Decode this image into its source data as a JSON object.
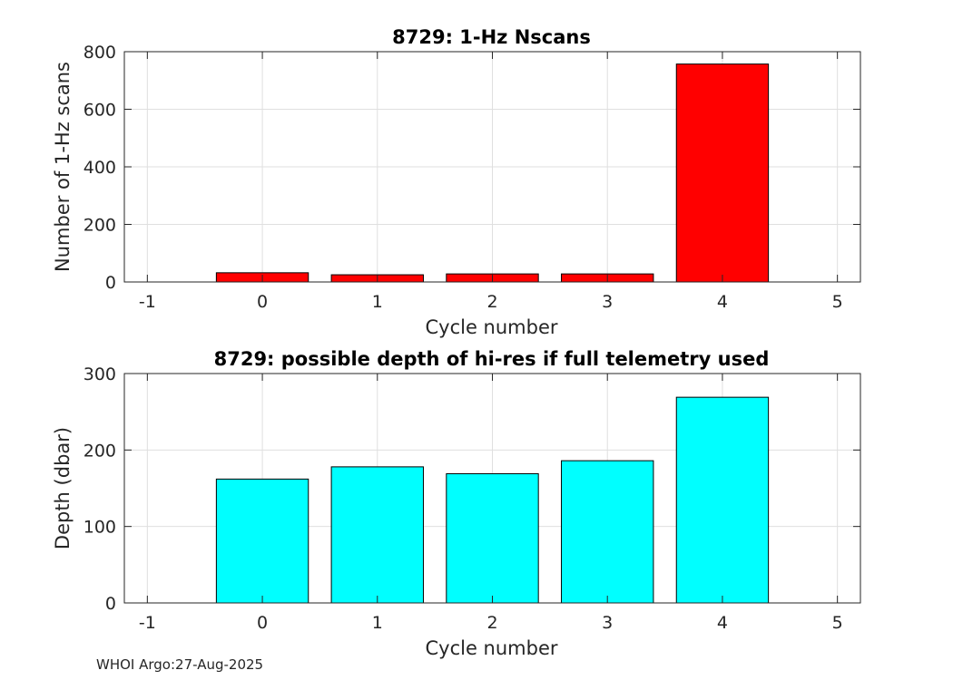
{
  "chart_data": [
    {
      "type": "bar",
      "title": "8729: 1-Hz Nscans",
      "xlabel": "Cycle number",
      "ylabel": "Number of 1-Hz scans",
      "x": [
        0,
        1,
        2,
        3,
        4
      ],
      "values": [
        32,
        25,
        28,
        28,
        757
      ],
      "xlim": [
        -1.2,
        5.2
      ],
      "ylim": [
        0,
        800
      ],
      "xticks": [
        -1,
        0,
        1,
        2,
        3,
        4,
        5
      ],
      "yticks": [
        0,
        200,
        400,
        600,
        800
      ],
      "bar_color": "#ff0000",
      "grid": true
    },
    {
      "type": "bar",
      "title": "8729: possible depth of hi-res if full telemetry used",
      "xlabel": "Cycle number",
      "ylabel": "Depth (dbar)",
      "x": [
        0,
        1,
        2,
        3,
        4
      ],
      "values": [
        162,
        178,
        169,
        186,
        269
      ],
      "xlim": [
        -1.2,
        5.2
      ],
      "ylim": [
        0,
        300
      ],
      "xticks": [
        -1,
        0,
        1,
        2,
        3,
        4,
        5
      ],
      "yticks": [
        0,
        100,
        200,
        300
      ],
      "bar_color": "#00ffff",
      "grid": true
    }
  ],
  "footer": "WHOI Argo:27-Aug-2025"
}
